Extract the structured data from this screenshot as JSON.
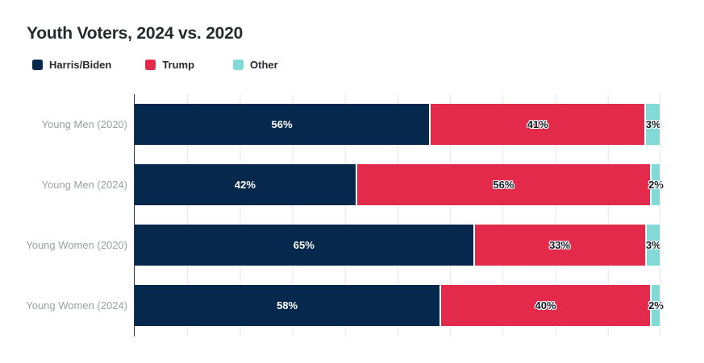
{
  "chart": {
    "title": "Youth Voters, 2024 vs. 2020",
    "label_suffix": "%"
  },
  "chart_data": {
    "type": "bar",
    "variant": "horizontal-stacked",
    "title": "Youth Voters, 2024 vs. 2020",
    "categories": [
      "Young Men (2020)",
      "Young Men (2024)",
      "Young Women (2020)",
      "Young Women (2024)"
    ],
    "series": [
      {
        "name": "Harris/Biden",
        "color": "#06284c",
        "label_color": "#ffffff",
        "values": [
          56,
          42,
          65,
          58
        ]
      },
      {
        "name": "Trump",
        "color": "#e32a4b",
        "label_color": "#0e1a24",
        "values": [
          41,
          56,
          33,
          40
        ]
      },
      {
        "name": "Other",
        "color": "#82d9d5",
        "label_color": "#0e1a24",
        "values": [
          3,
          2,
          3,
          2
        ]
      }
    ],
    "xlabel": "",
    "ylabel": "",
    "xlim": [
      0,
      100
    ],
    "grid": "vertical gridlines every 10%",
    "legend_position": "top-left",
    "value_label_format": "{value}%"
  },
  "styles": {
    "title_color": "#26292e",
    "legend_text_color": "#242a31",
    "category_label_color": "#9aa0a6",
    "gridline_color": "#e5e6e7",
    "axis_line_color": "#303b45",
    "segment_divider_color": "#ffffff",
    "background_color": "#ffffff"
  }
}
